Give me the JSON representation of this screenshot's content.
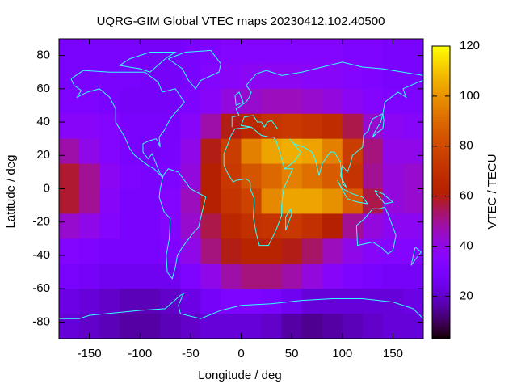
{
  "chart_data": {
    "type": "heatmap",
    "title": "UQRG-GIM Global VTEC maps 20230412.102.40500",
    "xlabel": "Longitude / deg",
    "ylabel": "Latitude / deg",
    "colorbar_label": "VTEC / TECU",
    "colormap": "gnuplot",
    "x": [
      -170,
      -150,
      -130,
      -110,
      -90,
      -70,
      -50,
      -30,
      -10,
      10,
      30,
      50,
      70,
      90,
      110,
      130,
      150,
      170
    ],
    "y": [
      82.5,
      67.5,
      52.5,
      37.5,
      22.5,
      7.5,
      -7.5,
      -22.5,
      -37.5,
      -52.5,
      -67.5,
      -82.5
    ],
    "z": [
      [
        30,
        30,
        30,
        30,
        28,
        28,
        30,
        32,
        34,
        34,
        34,
        34,
        34,
        34,
        32,
        32,
        30,
        30
      ],
      [
        30,
        30,
        30,
        30,
        28,
        28,
        30,
        34,
        36,
        38,
        38,
        38,
        36,
        36,
        34,
        32,
        30,
        30
      ],
      [
        32,
        32,
        30,
        28,
        28,
        28,
        32,
        36,
        42,
        44,
        46,
        46,
        44,
        42,
        38,
        34,
        32,
        32
      ],
      [
        36,
        36,
        34,
        30,
        30,
        30,
        36,
        48,
        60,
        66,
        72,
        74,
        72,
        68,
        56,
        44,
        38,
        36
      ],
      [
        48,
        40,
        34,
        30,
        28,
        30,
        40,
        60,
        76,
        96,
        104,
        106,
        104,
        96,
        76,
        52,
        40,
        40
      ],
      [
        58,
        50,
        38,
        32,
        30,
        32,
        42,
        62,
        74,
        84,
        90,
        96,
        92,
        86,
        72,
        50,
        42,
        44
      ],
      [
        58,
        50,
        36,
        30,
        30,
        34,
        46,
        62,
        72,
        78,
        98,
        104,
        104,
        100,
        86,
        56,
        42,
        44
      ],
      [
        44,
        40,
        34,
        30,
        30,
        34,
        44,
        56,
        66,
        70,
        72,
        74,
        70,
        62,
        50,
        42,
        38,
        38
      ],
      [
        34,
        32,
        30,
        30,
        30,
        32,
        40,
        52,
        60,
        64,
        64,
        60,
        54,
        46,
        40,
        36,
        34,
        34
      ],
      [
        30,
        28,
        26,
        26,
        26,
        26,
        32,
        40,
        48,
        52,
        52,
        48,
        42,
        36,
        32,
        30,
        28,
        28
      ],
      [
        24,
        22,
        20,
        18,
        18,
        20,
        24,
        28,
        32,
        32,
        30,
        26,
        22,
        22,
        22,
        22,
        22,
        24
      ],
      [
        22,
        20,
        18,
        16,
        16,
        18,
        20,
        22,
        22,
        22,
        20,
        16,
        14,
        16,
        18,
        20,
        22,
        22
      ]
    ],
    "xlim": [
      -180,
      180
    ],
    "ylim": [
      -90,
      90
    ],
    "xticks": [
      -150,
      -100,
      -50,
      0,
      50,
      100,
      150
    ],
    "yticks": [
      -80,
      -60,
      -40,
      -20,
      0,
      20,
      40,
      60,
      80
    ],
    "clim": [
      3,
      120
    ],
    "cticks": [
      20,
      40,
      60,
      80,
      100,
      120
    ]
  }
}
